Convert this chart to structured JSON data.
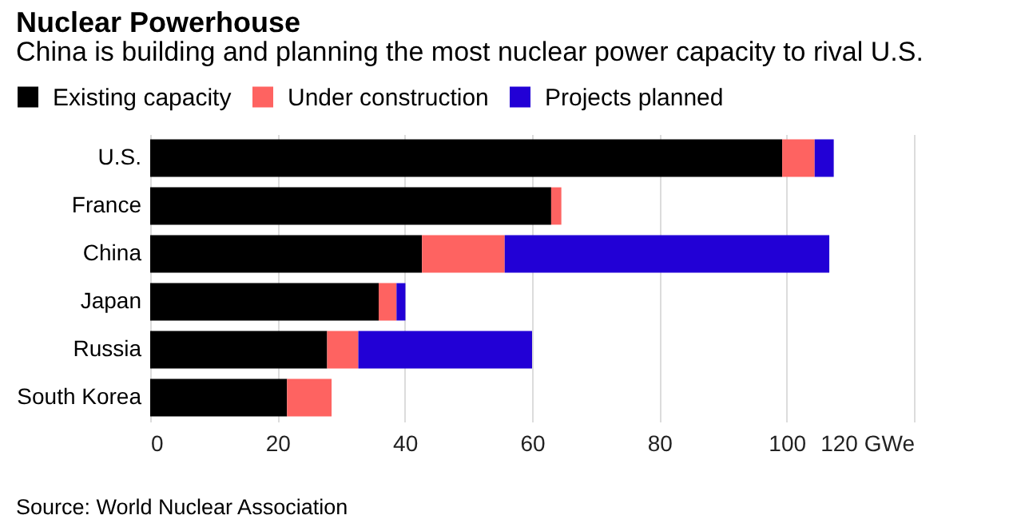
{
  "chart_data": {
    "type": "bar",
    "orientation": "horizontal",
    "stacked": true,
    "title": "Nuclear Powerhouse",
    "subtitle": "China is building and planning the most nuclear power capacity to rival U.S.",
    "categories": [
      "U.S.",
      "France",
      "China",
      "Japan",
      "Russia",
      "South Korea"
    ],
    "series": [
      {
        "name": "Existing capacity",
        "color": "#000000",
        "values": [
          99.3,
          63.0,
          42.7,
          35.9,
          27.8,
          21.5
        ]
      },
      {
        "name": "Under construction",
        "color": "#fe6361",
        "values": [
          5.1,
          1.6,
          13.0,
          2.8,
          4.9,
          7.0
        ]
      },
      {
        "name": "Projects planned",
        "color": "#2200d6",
        "values": [
          3.0,
          null,
          51.0,
          1.4,
          27.3,
          null
        ]
      }
    ],
    "xlim": [
      0,
      120
    ],
    "xticks": [
      0,
      20,
      40,
      60,
      80,
      100,
      {
        "value": 120,
        "label": "120 GWe"
      }
    ],
    "grid": "x",
    "legend": "top left",
    "annotations": [
      "Source: World Nuclear Association"
    ]
  }
}
